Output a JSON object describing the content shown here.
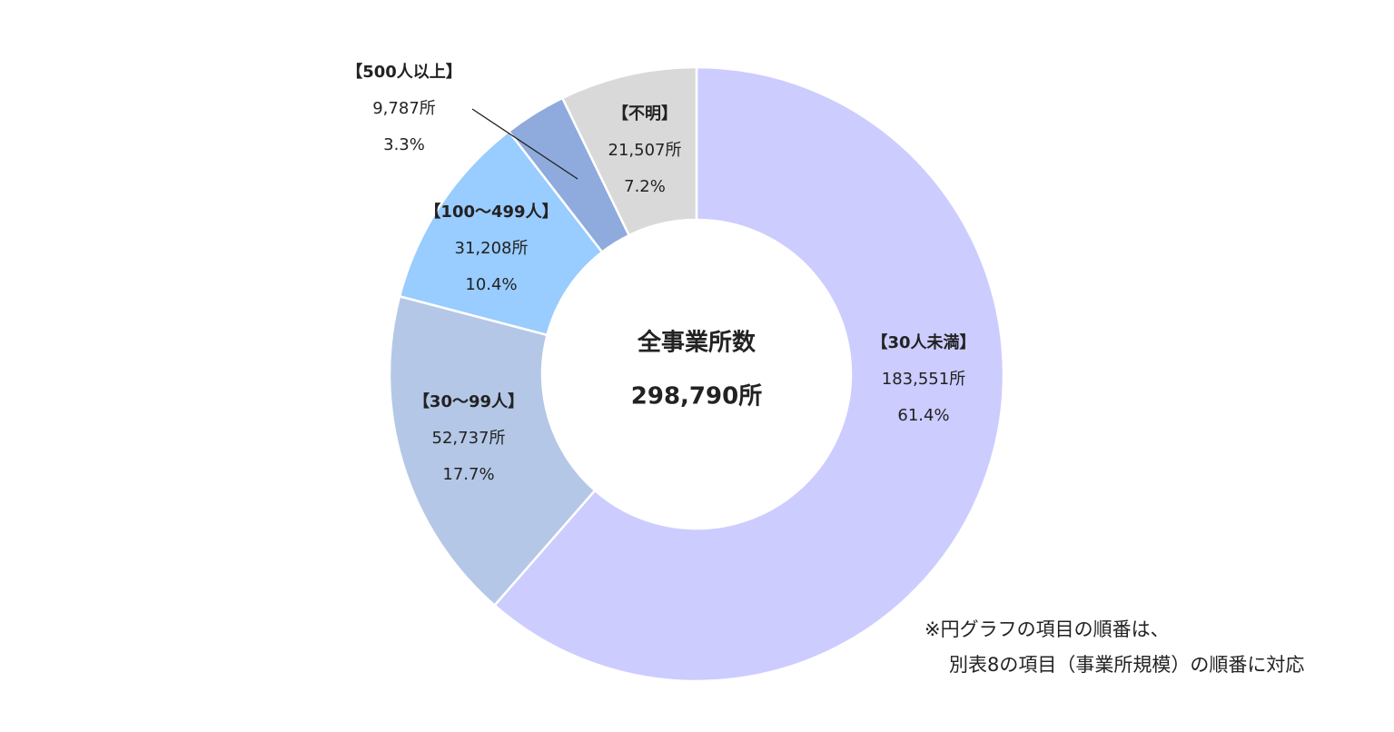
{
  "chart_data": {
    "type": "donut",
    "center_title": "全事業所数",
    "center_total": "298,790所",
    "categories": [
      "【30人未満】",
      "【30～99人】",
      "【100～499人】",
      "【500人以上】",
      "【不明】"
    ],
    "values": [
      183551,
      52737,
      31208,
      9787,
      21507
    ],
    "value_labels": [
      "183,551所",
      "52,737所",
      "31,208所",
      "9,787所",
      "21,507所"
    ],
    "percent_labels": [
      "61.4%",
      "17.7%",
      "10.4%",
      "3.3%",
      "7.2%"
    ],
    "colors": [
      "#ccccff",
      "#b4c7e7",
      "#99ccff",
      "#8faadc",
      "#d9d9d9"
    ]
  },
  "footnote": [
    "※円グラフの項目の順番は、",
    "別表8の項目（事業所規模）の順番に対応"
  ]
}
